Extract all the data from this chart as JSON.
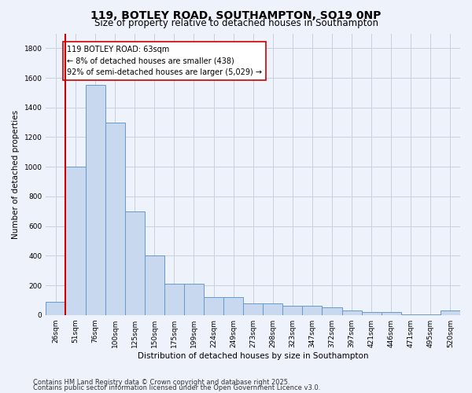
{
  "title1": "119, BOTLEY ROAD, SOUTHAMPTON, SO19 0NP",
  "title2": "Size of property relative to detached houses in Southampton",
  "xlabel": "Distribution of detached houses by size in Southampton",
  "ylabel": "Number of detached properties",
  "categories": [
    "26sqm",
    "51sqm",
    "76sqm",
    "100sqm",
    "125sqm",
    "150sqm",
    "175sqm",
    "199sqm",
    "224sqm",
    "249sqm",
    "273sqm",
    "298sqm",
    "323sqm",
    "347sqm",
    "372sqm",
    "397sqm",
    "421sqm",
    "446sqm",
    "471sqm",
    "495sqm",
    "520sqm"
  ],
  "values": [
    90,
    1000,
    1550,
    1300,
    700,
    400,
    210,
    210,
    120,
    120,
    80,
    80,
    60,
    60,
    50,
    30,
    20,
    20,
    5,
    5,
    30
  ],
  "bar_color": "#c8d8ee",
  "bar_edge_color": "#6699cc",
  "vline_x": 0.5,
  "vline_color": "#cc0000",
  "annotation_text": "119 BOTLEY ROAD: 63sqm\n← 8% of detached houses are smaller (438)\n92% of semi-detached houses are larger (5,029) →",
  "annotation_box_color": "white",
  "annotation_box_edge": "#cc0000",
  "ylim": [
    0,
    1900
  ],
  "yticks": [
    0,
    200,
    400,
    600,
    800,
    1000,
    1200,
    1400,
    1600,
    1800
  ],
  "background_color": "#eef2fa",
  "grid_color": "#c8d0e0",
  "footer1": "Contains HM Land Registry data © Crown copyright and database right 2025.",
  "footer2": "Contains public sector information licensed under the Open Government Licence v3.0.",
  "title1_fontsize": 10,
  "title2_fontsize": 8.5,
  "axis_label_fontsize": 7.5,
  "tick_fontsize": 6.5,
  "annotation_fontsize": 7,
  "footer_fontsize": 6
}
